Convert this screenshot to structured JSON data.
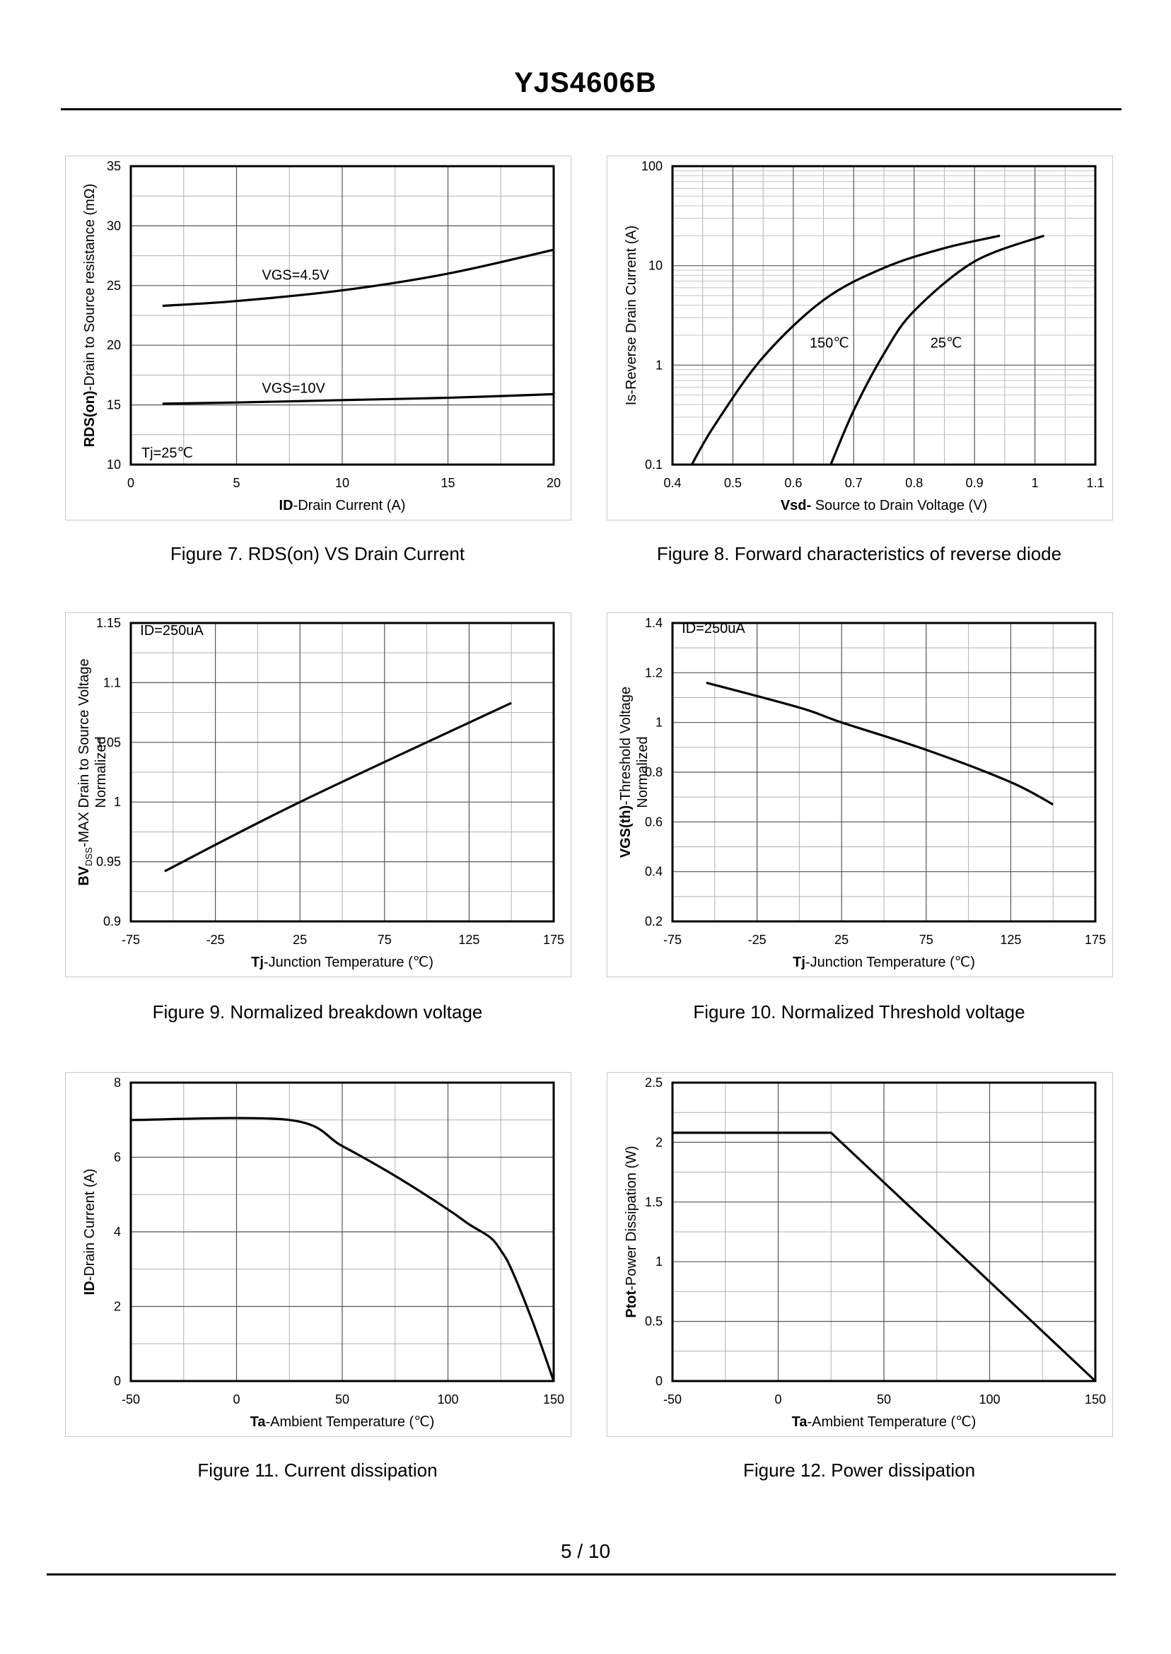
{
  "header": {
    "title": "YJS4606B"
  },
  "footer": {
    "page": "5 / 10"
  },
  "captions": {
    "fig7": "Figure 7.  RDS(on) VS Drain Current",
    "fig8": "Figure 8.  Forward characteristics of reverse diode",
    "fig9": "Figure 9.  Normalized breakdown voltage",
    "fig10": "Figure 10.  Normalized Threshold voltage",
    "fig11": "Figure 11.  Current dissipation",
    "fig12": "Figure 12.  Power dissipation"
  },
  "chart_data": [
    {
      "id": "fig7",
      "type": "line",
      "xlabel_bold": "ID",
      "xlabel": "-Drain Current (A)",
      "ylabel_bold": "RDS(on)",
      "ylabel": "-Drain to Source resistance (mΩ)",
      "xlim": [
        0,
        20
      ],
      "ylim": [
        10,
        35
      ],
      "xticks": [
        0,
        5,
        10,
        15,
        20
      ],
      "yticks": [
        10,
        15,
        20,
        25,
        30,
        35
      ],
      "annotations": [
        {
          "text": "VGS=4.5V",
          "x": 6.0,
          "y": 25.5
        },
        {
          "text": "VGS=10V",
          "x": 6.0,
          "y": 16.0
        },
        {
          "text": "Tj=25℃",
          "x": 0.3,
          "y": 10.6
        }
      ],
      "series": [
        {
          "name": "VGS=4.5V",
          "x": [
            1.5,
            5,
            10,
            15,
            20
          ],
          "y": [
            23.3,
            23.7,
            24.6,
            26.0,
            28.0
          ]
        },
        {
          "name": "VGS=10V",
          "x": [
            1.5,
            5,
            10,
            15,
            20
          ],
          "y": [
            15.1,
            15.2,
            15.4,
            15.6,
            15.9
          ]
        }
      ]
    },
    {
      "id": "fig8",
      "type": "line",
      "xlabel_bold": "Vsd-",
      "xlabel": " Source to Drain Voltage (V)",
      "ylabel": "Is-Reverse  Drain Current (A)",
      "xlim": [
        0.4,
        1.1
      ],
      "ylim": [
        0.1,
        100
      ],
      "ylog": true,
      "xticks": [
        0.4,
        0.5,
        0.6,
        0.7,
        0.8,
        0.9,
        1,
        1.1
      ],
      "yticks": [
        0.1,
        1,
        10,
        100
      ],
      "annotations": [
        {
          "text": "150℃",
          "x": 0.62,
          "y": 1.5
        },
        {
          "text": "25℃",
          "x": 0.82,
          "y": 1.5
        }
      ],
      "series": [
        {
          "name": "150℃",
          "x": [
            0.432,
            0.47,
            0.55,
            0.65,
            0.75,
            0.85,
            0.942
          ],
          "y": [
            0.1,
            0.25,
            1.2,
            4.5,
            9.5,
            15,
            20
          ]
        },
        {
          "name": "25℃",
          "x": [
            0.662,
            0.7,
            0.75,
            0.8,
            0.9,
            1.015
          ],
          "y": [
            0.1,
            0.35,
            1.3,
            3.5,
            11,
            20
          ]
        }
      ]
    },
    {
      "id": "fig9",
      "type": "line",
      "xlabel_bold": "Tj",
      "xlabel": "-Junction  Temperature (℃)",
      "ylabel_bold": "BV",
      "ylabel_sub": "DSS",
      "ylabel": "-MAX Drain to Source Voltage",
      "ylabel2": "Normalized",
      "xlim": [
        -75,
        175
      ],
      "ylim": [
        0.9,
        1.15
      ],
      "xticks": [
        -75,
        -25,
        25,
        75,
        125,
        175
      ],
      "yticks": [
        0.9,
        0.95,
        1,
        1.05,
        1.1,
        1.15
      ],
      "annotations": [
        {
          "text": "ID=250uA",
          "x": -72,
          "y": 1.14
        }
      ],
      "series": [
        {
          "name": "BVDSS",
          "x": [
            -55,
            25,
            150
          ],
          "y": [
            0.942,
            1.0,
            1.083
          ]
        }
      ]
    },
    {
      "id": "fig10",
      "type": "line",
      "xlabel_bold": "Tj",
      "xlabel": "-Junction  Temperature (℃)",
      "ylabel_bold": "VGS(th)",
      "ylabel": "-Threshold  Voltage",
      "ylabel2": "Normalized",
      "xlim": [
        -75,
        175
      ],
      "ylim": [
        0.2,
        1.4
      ],
      "xticks": [
        -75,
        -25,
        25,
        75,
        125,
        175
      ],
      "yticks": [
        0.2,
        0.4,
        0.6,
        0.8,
        1,
        1.2,
        1.4
      ],
      "annotations": [
        {
          "text": "ID=250uA",
          "x": -72,
          "y": 1.36
        }
      ],
      "series": [
        {
          "name": "VGS(th)",
          "x": [
            -55,
            0,
            25,
            75,
            125,
            150
          ],
          "y": [
            1.16,
            1.06,
            1.0,
            0.89,
            0.76,
            0.67
          ]
        }
      ]
    },
    {
      "id": "fig11",
      "type": "line",
      "xlabel_bold": "Ta",
      "xlabel": "-Ambient Temperature (℃)",
      "ylabel_bold": "ID",
      "ylabel": "-Drain Current (A)",
      "xlim": [
        -50,
        150
      ],
      "ylim": [
        0,
        8
      ],
      "xticks": [
        -50,
        0,
        50,
        100,
        150
      ],
      "yticks": [
        0,
        2,
        4,
        6,
        8
      ],
      "annotations": [],
      "series": [
        {
          "name": "ID",
          "x": [
            -50,
            25,
            50,
            75,
            100,
            110,
            120,
            125,
            130,
            140,
            150
          ],
          "y": [
            7.0,
            7.0,
            6.3,
            5.5,
            4.6,
            4.2,
            3.85,
            3.5,
            3.0,
            1.6,
            0
          ]
        }
      ]
    },
    {
      "id": "fig12",
      "type": "line",
      "xlabel_bold": "Ta",
      "xlabel": "-Ambient Temperature (℃)",
      "ylabel_bold": "Ptot",
      "ylabel": "-Power Dissipation  (W)",
      "xlim": [
        -50,
        150
      ],
      "ylim": [
        0,
        2.5
      ],
      "xticks": [
        -50,
        0,
        50,
        100,
        150
      ],
      "yticks": [
        0,
        0.5,
        1,
        1.5,
        2,
        2.5
      ],
      "annotations": [],
      "series": [
        {
          "name": "Ptot",
          "x": [
            -50,
            25,
            150
          ],
          "y": [
            2.08,
            2.08,
            0
          ]
        }
      ]
    }
  ]
}
